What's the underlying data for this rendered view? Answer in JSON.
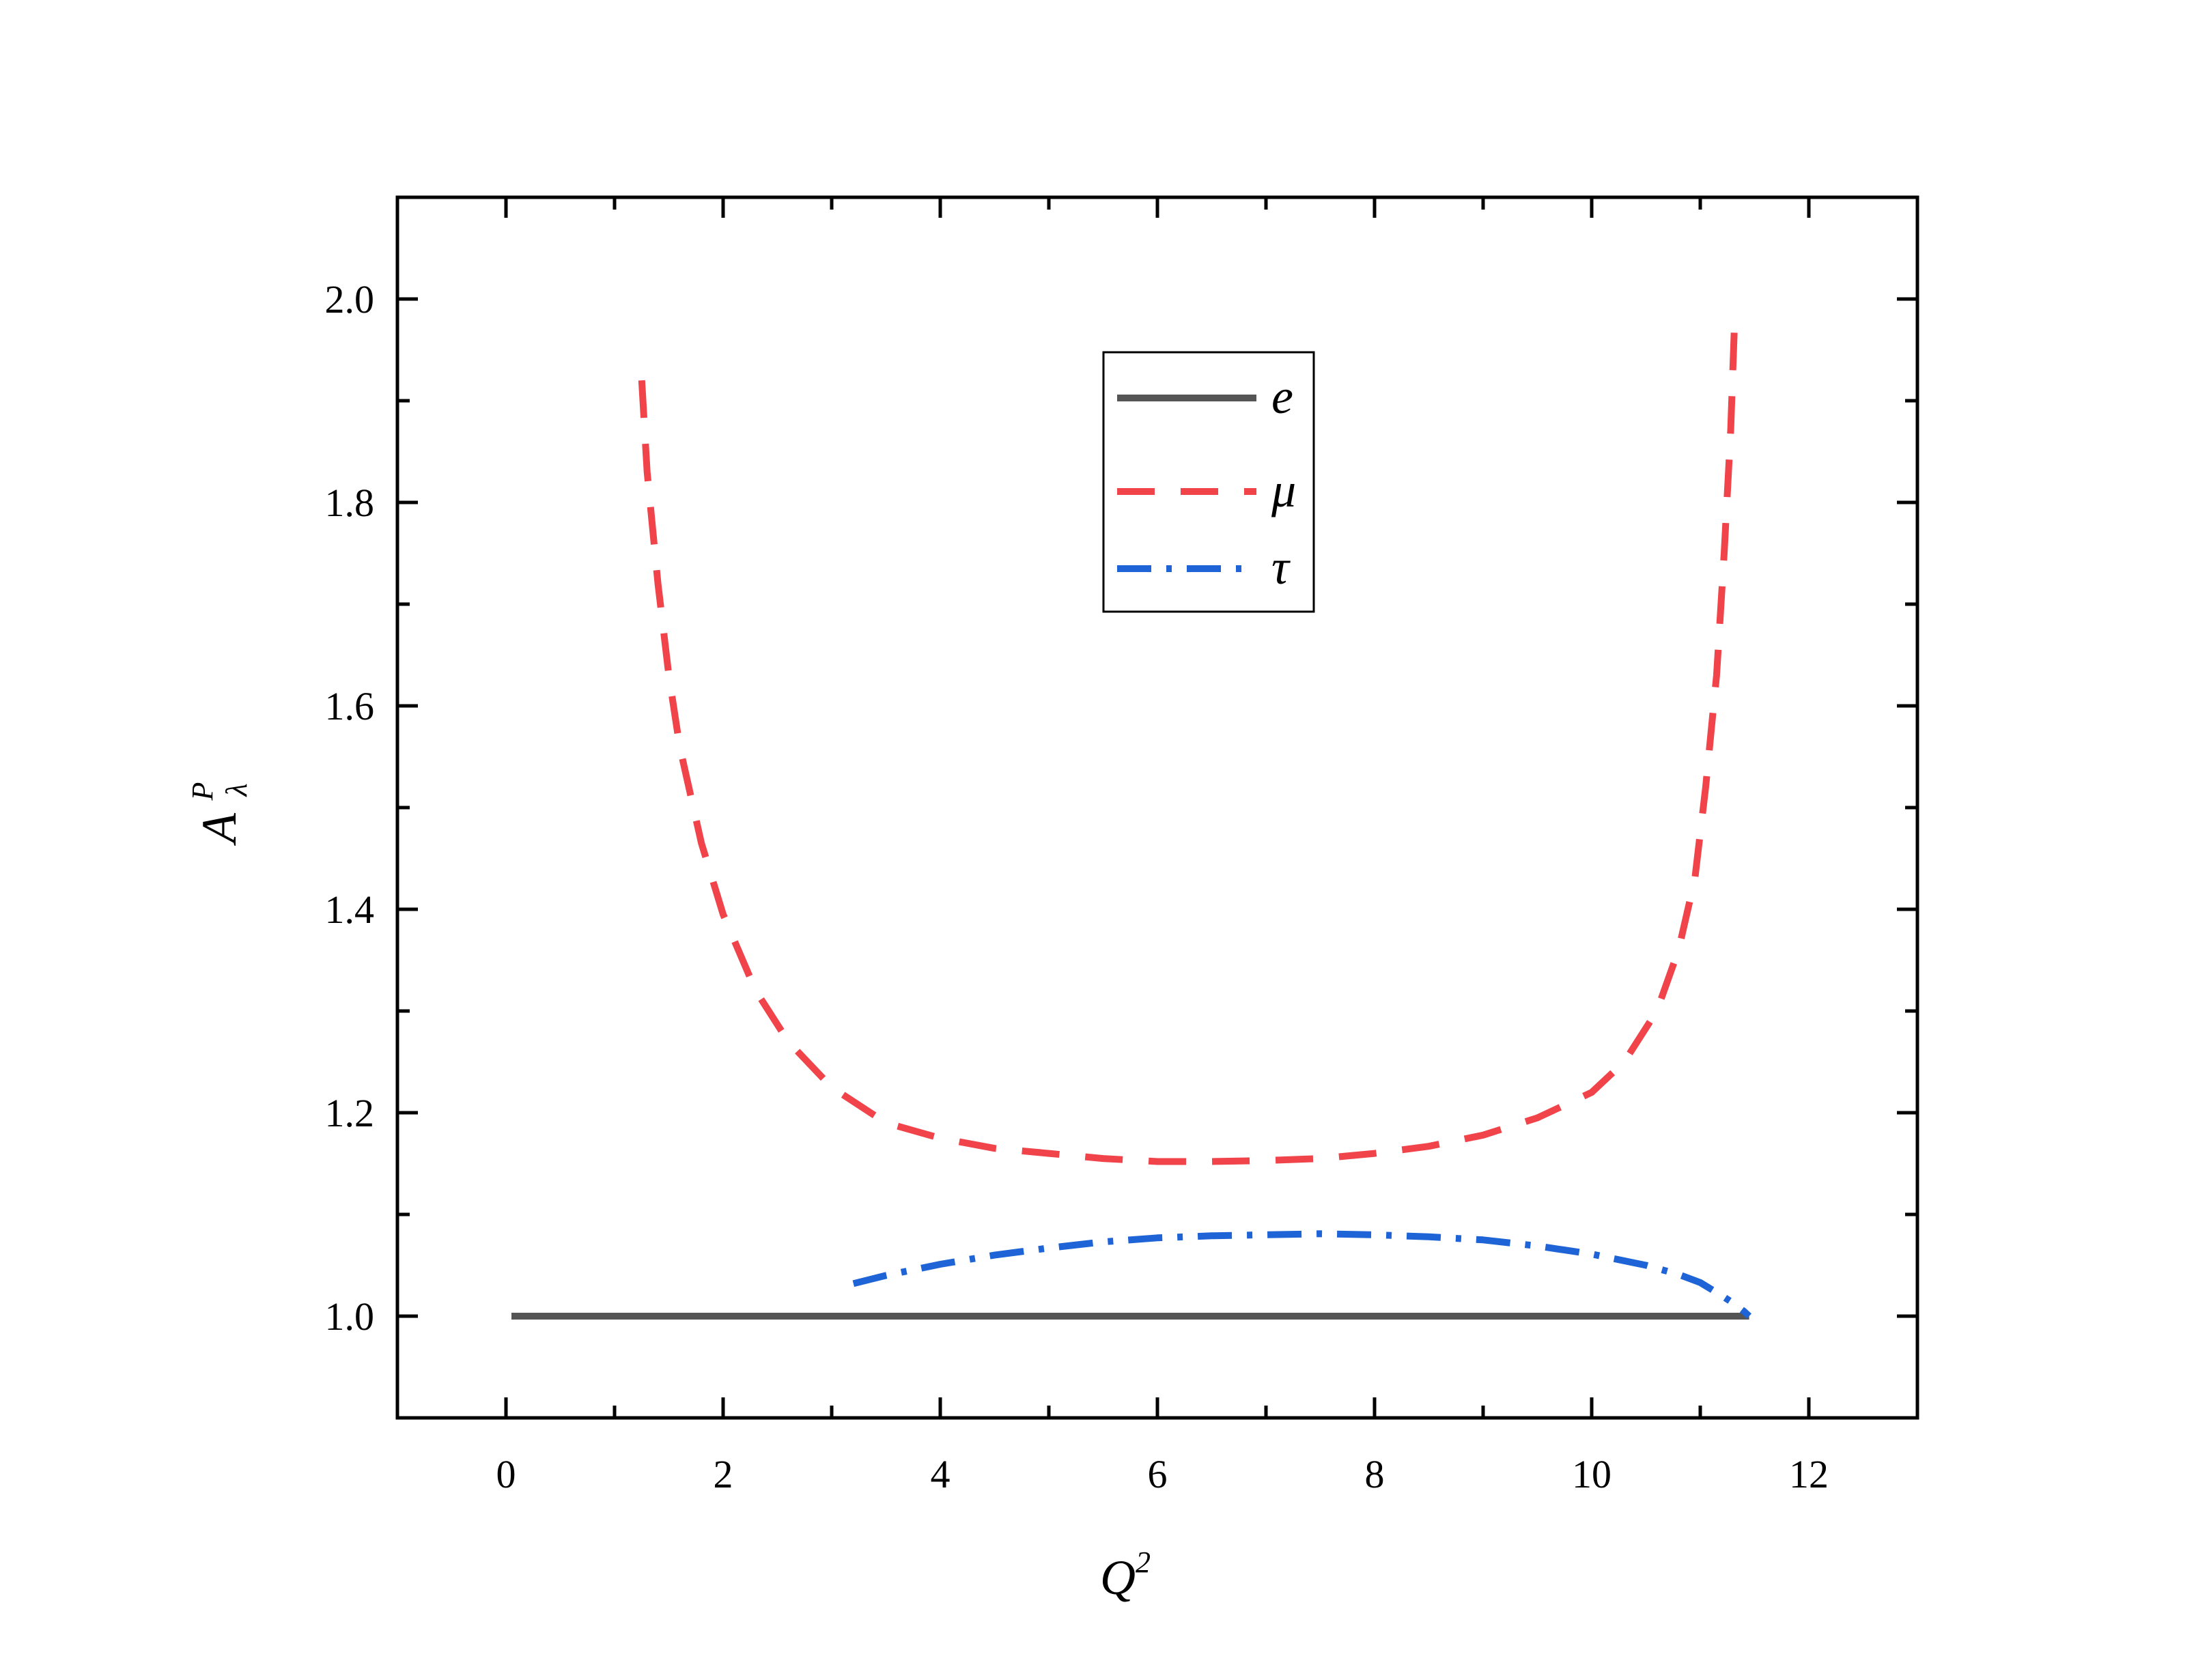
{
  "chart_data": {
    "type": "line",
    "xlabel": "Q",
    "xlabel_superscript": "2",
    "ylabel": "A",
    "ylabel_superscript": "P",
    "ylabel_subscript": "λ",
    "xlim": [
      -1,
      13
    ],
    "ylim": [
      0.9,
      2.1
    ],
    "x_ticks": [
      0,
      2,
      4,
      6,
      8,
      10,
      12
    ],
    "x_tick_labels": [
      "0",
      "2",
      "4",
      "6",
      "8",
      "10",
      "12"
    ],
    "y_ticks": [
      1.0,
      1.2,
      1.4,
      1.6,
      1.8,
      2.0
    ],
    "y_tick_labels": [
      "1.0",
      "1.2",
      "1.4",
      "1.6",
      "1.8",
      "2.0"
    ],
    "grid": false,
    "legend_position": "top-center",
    "series": [
      {
        "name": "e",
        "color": "#555555",
        "style": "solid",
        "x": [
          0.05,
          0.15,
          2,
          4,
          6,
          8,
          10,
          11.45
        ],
        "y": [
          1.0,
          1.0,
          1.0,
          1.0,
          1.0,
          1.0,
          1.0,
          1.0
        ]
      },
      {
        "name": "μ",
        "color": "#f0434a",
        "style": "dashed",
        "x": [
          1.25,
          1.3,
          1.4,
          1.5,
          1.6,
          1.8,
          2.0,
          2.3,
          2.6,
          3.0,
          3.5,
          4.0,
          4.5,
          5.0,
          5.5,
          6.0,
          6.5,
          7.0,
          7.5,
          8.0,
          8.5,
          9.0,
          9.5,
          10.0,
          10.3,
          10.6,
          10.8,
          10.95,
          11.05,
          11.15,
          11.22,
          11.28,
          11.32
        ],
        "y": [
          1.92,
          1.83,
          1.72,
          1.63,
          1.56,
          1.465,
          1.395,
          1.32,
          1.27,
          1.225,
          1.19,
          1.175,
          1.165,
          1.16,
          1.155,
          1.152,
          1.152,
          1.153,
          1.155,
          1.16,
          1.167,
          1.178,
          1.195,
          1.22,
          1.25,
          1.3,
          1.36,
          1.43,
          1.52,
          1.63,
          1.75,
          1.87,
          1.99
        ]
      },
      {
        "name": "τ",
        "color": "#1e64d6",
        "style": "dashdot",
        "x": [
          3.2,
          3.5,
          4.0,
          4.5,
          5.0,
          5.5,
          6.0,
          6.5,
          7.0,
          7.5,
          8.0,
          8.5,
          9.0,
          9.5,
          10.0,
          10.5,
          10.8,
          11.0,
          11.2,
          11.3,
          11.4,
          11.45
        ],
        "y": [
          1.032,
          1.04,
          1.051,
          1.06,
          1.067,
          1.073,
          1.077,
          1.079,
          1.08,
          1.081,
          1.08,
          1.078,
          1.075,
          1.069,
          1.061,
          1.05,
          1.041,
          1.033,
          1.02,
          1.013,
          1.005,
          1.0
        ]
      }
    ]
  }
}
